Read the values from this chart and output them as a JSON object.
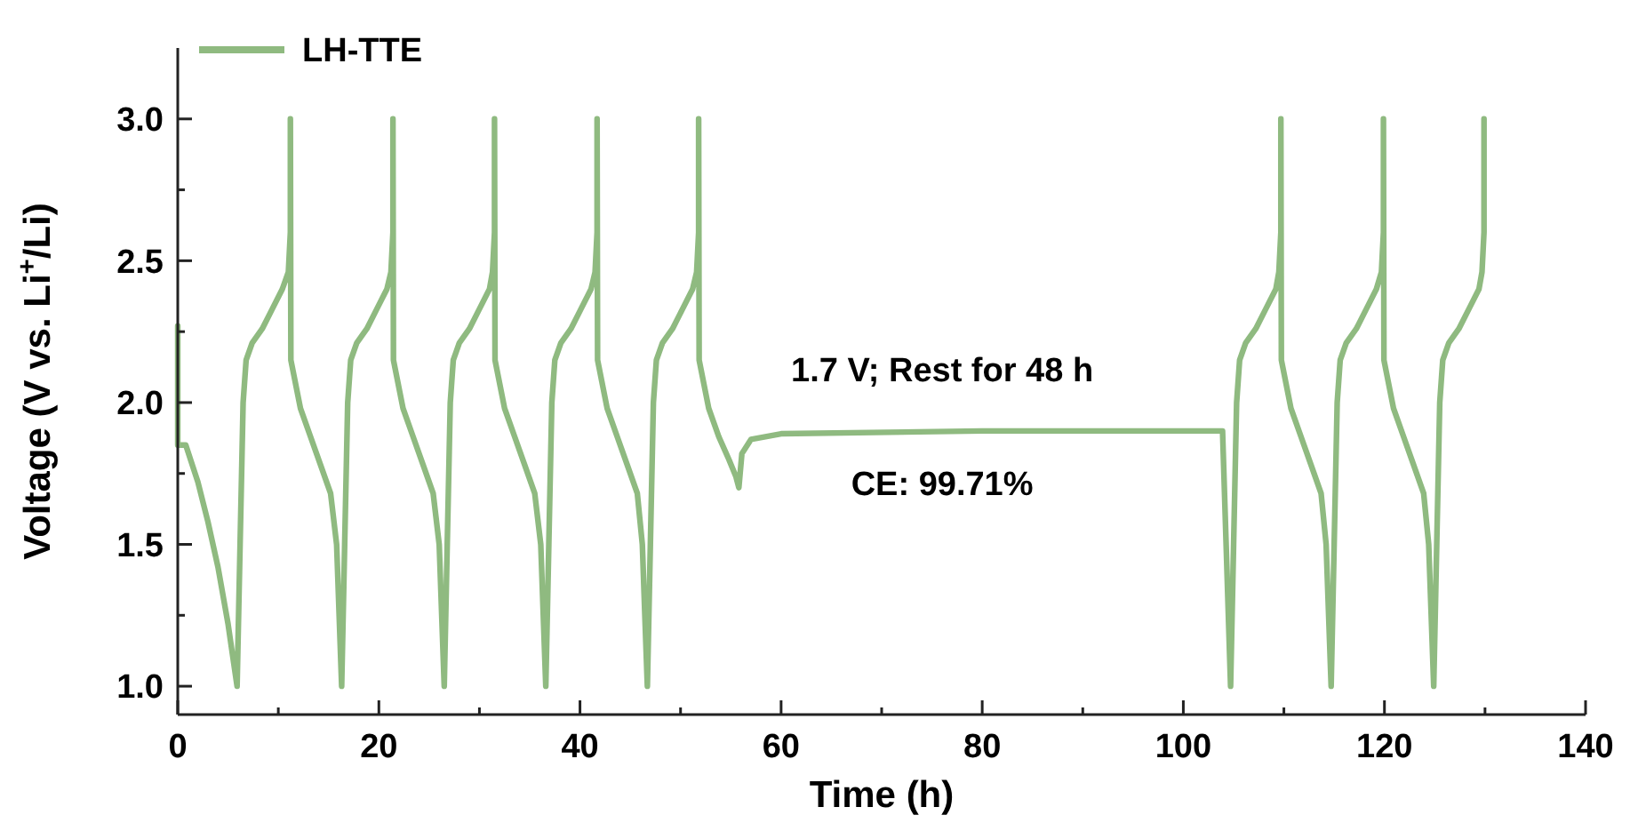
{
  "chart_data": {
    "type": "line",
    "xlabel": "Time (h)",
    "ylabel": "Voltage (V vs. Li$^{+}$/Li)",
    "xlim": [
      0,
      140
    ],
    "ylim": [
      0.9,
      3.25
    ],
    "xticks": [
      0,
      {
        "value": 10,
        "label": null
      },
      20,
      {
        "value": 30,
        "label": null
      },
      40,
      {
        "value": 50,
        "label": null
      },
      60,
      {
        "value": 70,
        "label": null
      },
      80,
      {
        "value": 90,
        "label": null
      },
      100,
      {
        "value": 110,
        "label": null
      },
      120,
      {
        "value": 130,
        "label": null
      },
      140
    ],
    "yticks": [
      {
        "value": 1,
        "label": "1.0"
      },
      {
        "value": 1.25,
        "label": null
      },
      {
        "value": 1.5,
        "label": "1.5"
      },
      {
        "value": 1.75,
        "label": null
      },
      {
        "value": 2,
        "label": "2.0"
      },
      {
        "value": 2.25,
        "label": null
      },
      {
        "value": 2.5,
        "label": "2.5"
      },
      {
        "value": 2.75,
        "label": null
      },
      {
        "value": 3,
        "label": "3.0"
      }
    ],
    "legend": "top left",
    "grid": false,
    "marker": "none",
    "line_style": "solid",
    "annotations": [
      "1.7 V; Rest for 48 h",
      "CE: 99.71%"
    ],
    "series": [
      {
        "name": "LH-TTE",
        "color": "#8fba80",
        "x": [
          0,
          0,
          0.8,
          2,
          3,
          4,
          5,
          5.9,
          6.2,
          6.5,
          6.8,
          7.4,
          8.4,
          9.4,
          10.4,
          11.0,
          11.2,
          11.2,
          11.25,
          12.2,
          13.2,
          14.2,
          15.2,
          15.8,
          16.3,
          16.6,
          16.9,
          17.2,
          17.8,
          18.8,
          19.8,
          20.8,
          21.2,
          21.4,
          21.4,
          21.45,
          22.4,
          23.4,
          24.4,
          25.4,
          26.0,
          26.5,
          26.8,
          27.1,
          27.4,
          28.0,
          29.0,
          30.0,
          31.0,
          31.3,
          31.5,
          31.5,
          31.55,
          32.5,
          33.5,
          34.5,
          35.5,
          36.1,
          36.6,
          36.9,
          37.2,
          37.5,
          38.1,
          39.1,
          40.1,
          41.1,
          41.5,
          41.7,
          41.7,
          41.75,
          42.7,
          43.7,
          44.7,
          45.7,
          46.2,
          46.7,
          47.0,
          47.3,
          47.6,
          48.2,
          49.2,
          50.2,
          51.2,
          51.6,
          51.8,
          51.8,
          51.85,
          52.8,
          53.8,
          54.8,
          55.5,
          55.8,
          56.1,
          57,
          60,
          80,
          103.9,
          104.7,
          105.0,
          105.3,
          105.6,
          106.2,
          107.2,
          108.2,
          109.2,
          109.5,
          109.7,
          109.7,
          109.75,
          110.7,
          111.7,
          112.7,
          113.7,
          114.2,
          114.7,
          115.0,
          115.3,
          115.6,
          116.2,
          117.2,
          118.2,
          119.2,
          119.7,
          119.9,
          119.9,
          119.95,
          120.9,
          121.9,
          122.9,
          123.9,
          124.4,
          124.9,
          125.2,
          125.5,
          125.8,
          126.4,
          127.4,
          128.4,
          129.4,
          129.7,
          129.9,
          129.9
        ],
        "values": [
          2.27,
          1.85,
          1.85,
          1.72,
          1.58,
          1.42,
          1.22,
          1.0,
          1.5,
          2.0,
          2.15,
          2.21,
          2.26,
          2.33,
          2.4,
          2.46,
          2.6,
          3.0,
          2.15,
          1.98,
          1.88,
          1.78,
          1.68,
          1.5,
          1.0,
          1.5,
          2.0,
          2.15,
          2.21,
          2.26,
          2.33,
          2.4,
          2.46,
          2.6,
          3.0,
          2.15,
          1.98,
          1.88,
          1.78,
          1.68,
          1.5,
          1.0,
          1.5,
          2.0,
          2.15,
          2.21,
          2.26,
          2.33,
          2.4,
          2.46,
          2.6,
          3.0,
          2.15,
          1.98,
          1.88,
          1.78,
          1.68,
          1.5,
          1.0,
          1.5,
          2.0,
          2.15,
          2.21,
          2.26,
          2.33,
          2.4,
          2.46,
          2.6,
          3.0,
          2.15,
          1.98,
          1.88,
          1.78,
          1.68,
          1.5,
          1.0,
          1.5,
          2.0,
          2.15,
          2.21,
          2.26,
          2.33,
          2.4,
          2.46,
          2.6,
          3.0,
          2.15,
          1.98,
          1.88,
          1.8,
          1.74,
          1.7,
          1.82,
          1.87,
          1.89,
          1.9,
          1.9,
          1.0,
          1.5,
          2.0,
          2.15,
          2.21,
          2.26,
          2.33,
          2.4,
          2.46,
          2.6,
          3.0,
          2.15,
          1.98,
          1.88,
          1.78,
          1.68,
          1.5,
          1.0,
          1.5,
          2.0,
          2.15,
          2.21,
          2.26,
          2.33,
          2.4,
          2.46,
          2.6,
          3.0,
          2.15,
          1.98,
          1.88,
          1.78,
          1.68,
          1.5,
          1.0,
          1.5,
          2.0,
          2.15,
          2.21,
          2.26,
          2.33,
          2.4,
          2.46,
          2.6,
          3.0
        ]
      }
    ]
  }
}
